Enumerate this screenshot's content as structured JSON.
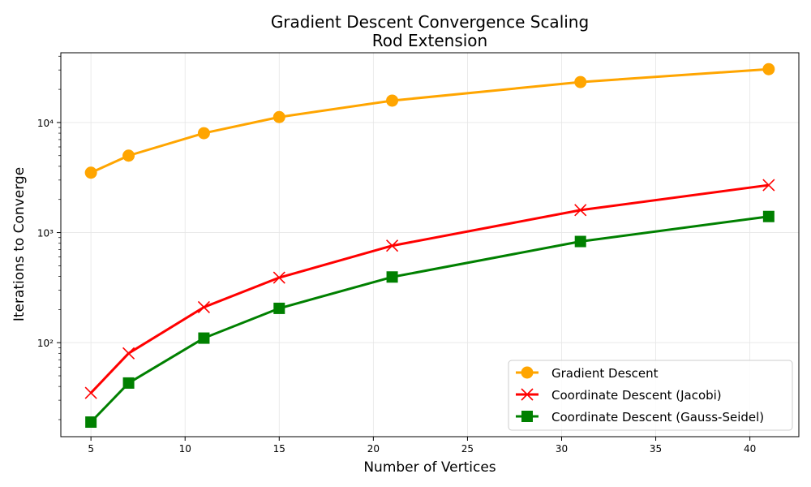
{
  "chart_data": {
    "type": "line",
    "title": "Gradient Descent Convergence Scaling",
    "subtitle": "Rod Extension",
    "xlabel": "Number of Vertices",
    "ylabel": "Iterations to Converge",
    "x": [
      5,
      7,
      11,
      15,
      21,
      31,
      41
    ],
    "xlim": [
      3.4,
      42.6
    ],
    "xticks": [
      5,
      10,
      15,
      20,
      25,
      30,
      35,
      40
    ],
    "yscale": "log",
    "ylim": [
      14,
      43000
    ],
    "yticks": [
      {
        "value": 100,
        "label": "10²"
      },
      {
        "value": 1000,
        "label": "10³"
      },
      {
        "value": 10000,
        "label": "10⁴"
      }
    ],
    "grid": true,
    "legend_position": "bottom-right",
    "series": [
      {
        "name": "Gradient Descent",
        "color": "#ffa500",
        "marker": "circle",
        "values": [
          3500,
          5000,
          8000,
          11200,
          15800,
          23300,
          30500
        ]
      },
      {
        "name": "Coordinate Descent (Jacobi)",
        "color": "#ff0000",
        "marker": "x",
        "values": [
          35,
          80,
          210,
          390,
          760,
          1600,
          2700
        ]
      },
      {
        "name": "Coordinate Descent (Gauss-Seidel)",
        "color": "#008000",
        "marker": "square",
        "values": [
          19,
          43,
          110,
          205,
          395,
          830,
          1400
        ]
      }
    ]
  }
}
